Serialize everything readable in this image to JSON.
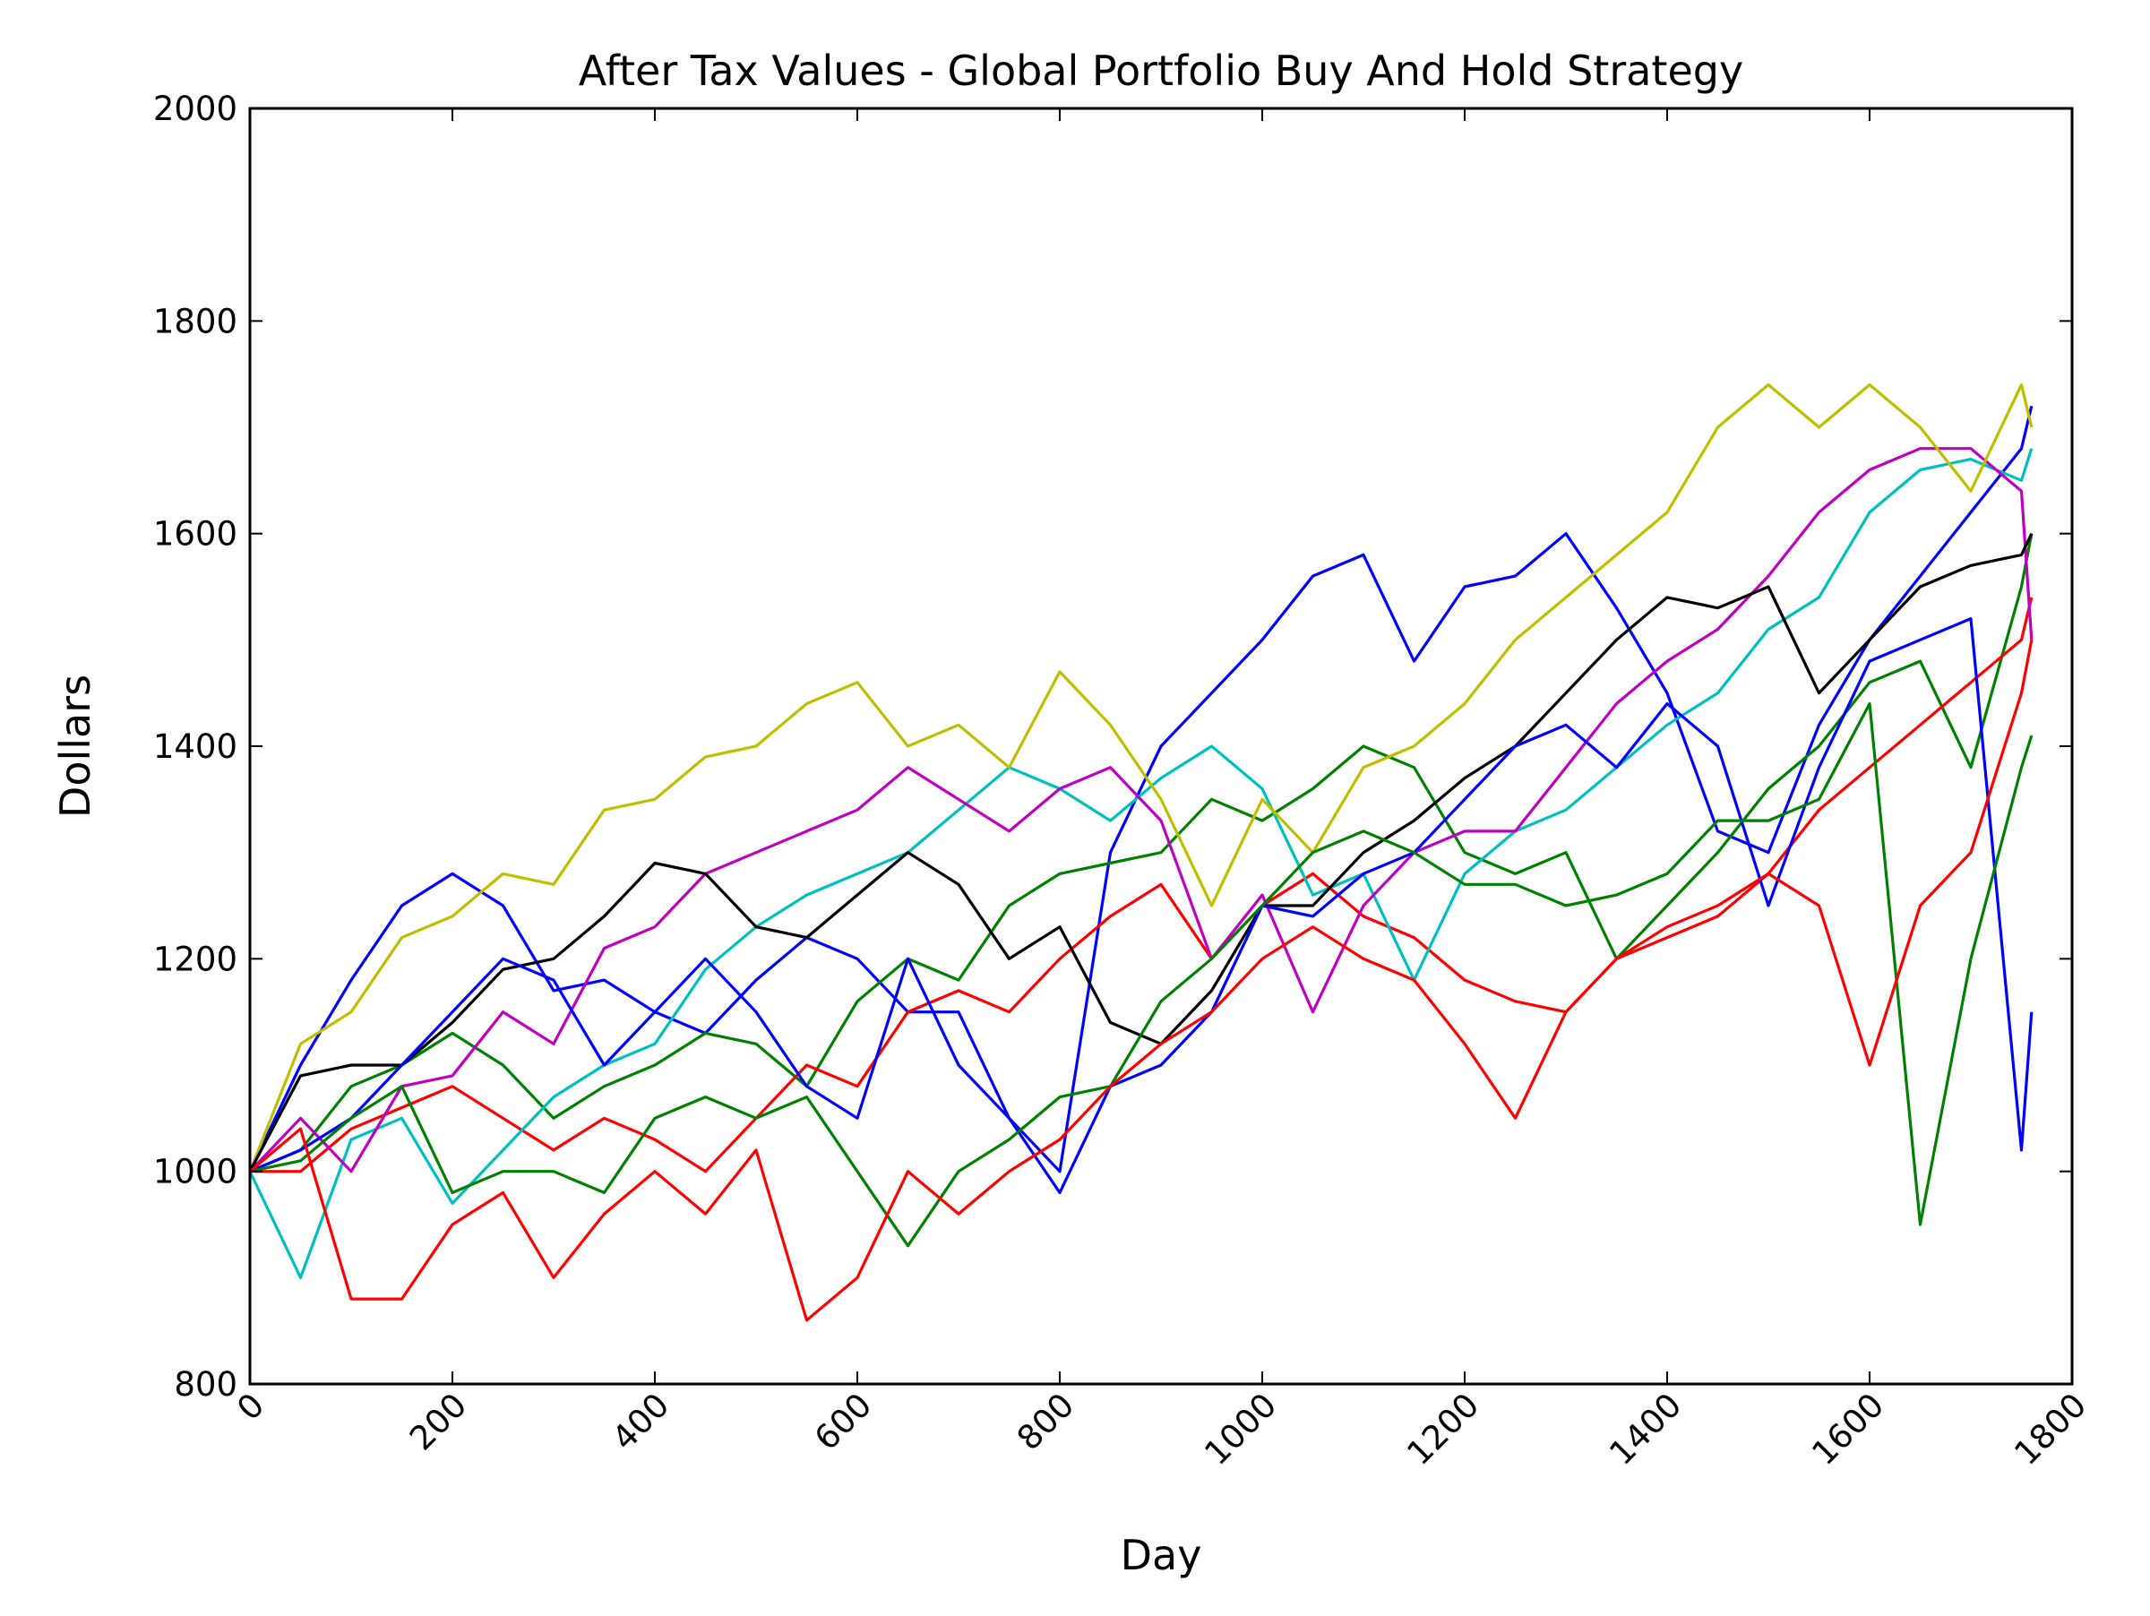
{
  "chart_data": {
    "type": "line",
    "title": "After Tax Values - Global Portfolio Buy And Hold Strategy",
    "xlabel": "Day",
    "ylabel": "Dollars",
    "xlim": [
      0,
      1800
    ],
    "ylim": [
      800,
      2000
    ],
    "xticks": [
      0,
      200,
      400,
      600,
      800,
      1000,
      1200,
      1400,
      1600,
      1800
    ],
    "yticks": [
      800,
      1000,
      1200,
      1400,
      1600,
      1800,
      2000
    ],
    "grid": false,
    "legend": "none",
    "x": [
      0,
      50,
      100,
      150,
      200,
      250,
      300,
      350,
      400,
      450,
      500,
      550,
      600,
      650,
      700,
      750,
      800,
      850,
      900,
      950,
      1000,
      1050,
      1100,
      1150,
      1200,
      1250,
      1300,
      1350,
      1400,
      1450,
      1500,
      1550,
      1600,
      1650,
      1700,
      1750,
      1760
    ],
    "series": [
      {
        "color": "#0000ff",
        "values": [
          1000,
          1100,
          1180,
          1250,
          1280,
          1250,
          1170,
          1180,
          1150,
          1130,
          1180,
          1220,
          1200,
          1150,
          1150,
          1050,
          1000,
          1300,
          1400,
          1450,
          1500,
          1560,
          1580,
          1480,
          1550,
          1560,
          1600,
          1530,
          1450,
          1320,
          1300,
          1420,
          1500,
          1560,
          1620,
          1680,
          1720
        ]
      },
      {
        "color": "#008000",
        "values": [
          1000,
          1020,
          1080,
          1100,
          1130,
          1100,
          1050,
          1080,
          1100,
          1130,
          1120,
          1080,
          1160,
          1200,
          1180,
          1250,
          1280,
          1290,
          1300,
          1350,
          1330,
          1360,
          1400,
          1380,
          1300,
          1280,
          1300,
          1200,
          1250,
          1300,
          1360,
          1400,
          1460,
          1480,
          1380,
          1550,
          1600
        ]
      },
      {
        "color": "#ff0000",
        "values": [
          1000,
          1000,
          1040,
          1060,
          1080,
          1050,
          1020,
          1050,
          1030,
          1000,
          1050,
          1100,
          1080,
          1150,
          1170,
          1150,
          1200,
          1240,
          1270,
          1200,
          1250,
          1280,
          1240,
          1220,
          1180,
          1160,
          1150,
          1200,
          1220,
          1240,
          1280,
          1340,
          1380,
          1420,
          1460,
          1500,
          1540
        ]
      },
      {
        "color": "#00bfbf",
        "values": [
          1000,
          900,
          1030,
          1050,
          970,
          1020,
          1070,
          1100,
          1120,
          1190,
          1230,
          1260,
          1280,
          1300,
          1340,
          1380,
          1360,
          1330,
          1370,
          1400,
          1360,
          1260,
          1280,
          1180,
          1280,
          1320,
          1340,
          1380,
          1420,
          1450,
          1510,
          1540,
          1620,
          1660,
          1670,
          1650,
          1680
        ]
      },
      {
        "color": "#bf00bf",
        "values": [
          1000,
          1050,
          1000,
          1080,
          1090,
          1150,
          1120,
          1210,
          1230,
          1280,
          1300,
          1320,
          1340,
          1380,
          1350,
          1320,
          1360,
          1380,
          1330,
          1200,
          1260,
          1150,
          1250,
          1300,
          1320,
          1320,
          1380,
          1440,
          1480,
          1510,
          1560,
          1620,
          1660,
          1680,
          1680,
          1640,
          1500
        ]
      },
      {
        "color": "#bfbf00",
        "values": [
          1000,
          1120,
          1150,
          1220,
          1240,
          1280,
          1270,
          1340,
          1350,
          1390,
          1400,
          1440,
          1460,
          1400,
          1420,
          1380,
          1470,
          1420,
          1350,
          1250,
          1350,
          1300,
          1380,
          1400,
          1440,
          1500,
          1540,
          1580,
          1620,
          1700,
          1740,
          1700,
          1740,
          1700,
          1640,
          1740,
          1700
        ]
      },
      {
        "color": "#000000",
        "values": [
          1000,
          1090,
          1100,
          1100,
          1140,
          1190,
          1200,
          1240,
          1290,
          1280,
          1230,
          1220,
          1260,
          1300,
          1270,
          1200,
          1230,
          1140,
          1120,
          1170,
          1250,
          1250,
          1300,
          1330,
          1370,
          1400,
          1450,
          1500,
          1540,
          1530,
          1550,
          1450,
          1500,
          1550,
          1570,
          1580,
          1600
        ]
      },
      {
        "color": "#0000ff",
        "values": [
          1000,
          1020,
          1050,
          1100,
          1150,
          1200,
          1180,
          1100,
          1150,
          1200,
          1150,
          1080,
          1050,
          1200,
          1100,
          1050,
          980,
          1080,
          1100,
          1150,
          1250,
          1240,
          1280,
          1300,
          1350,
          1400,
          1420,
          1380,
          1440,
          1400,
          1250,
          1380,
          1480,
          1500,
          1520,
          1020,
          1150
        ]
      },
      {
        "color": "#008000",
        "values": [
          1000,
          1010,
          1050,
          1080,
          980,
          1000,
          1000,
          980,
          1050,
          1070,
          1050,
          1070,
          1000,
          930,
          1000,
          1030,
          1070,
          1080,
          1160,
          1200,
          1250,
          1300,
          1320,
          1300,
          1270,
          1270,
          1250,
          1260,
          1280,
          1330,
          1330,
          1350,
          1440,
          950,
          1200,
          1380,
          1410
        ]
      },
      {
        "color": "#ff0000",
        "values": [
          1000,
          1040,
          880,
          880,
          950,
          980,
          900,
          960,
          1000,
          960,
          1020,
          860,
          900,
          1000,
          960,
          1000,
          1030,
          1080,
          1120,
          1150,
          1200,
          1230,
          1200,
          1180,
          1120,
          1050,
          1150,
          1200,
          1230,
          1250,
          1280,
          1250,
          1100,
          1250,
          1300,
          1450,
          1500
        ]
      }
    ]
  }
}
